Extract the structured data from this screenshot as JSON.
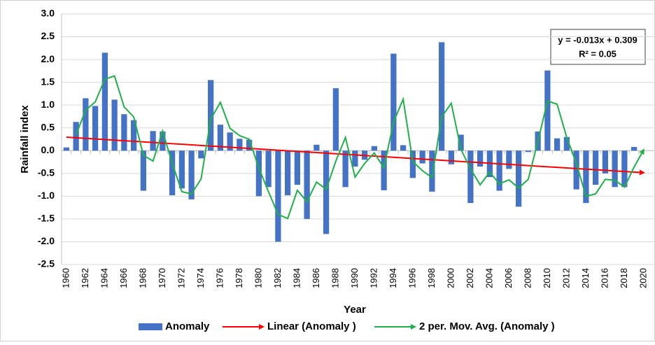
{
  "chart_data": {
    "type": "bar",
    "y_label": "Rainfall index",
    "x_label": "Year",
    "annotation": [
      "y = -0.013x + 0.309",
      "R² = 0.05"
    ],
    "categories": [
      1960,
      null,
      1962,
      null,
      1964,
      null,
      1966,
      null,
      1968,
      null,
      1970,
      null,
      1972,
      null,
      1974,
      null,
      1976,
      null,
      1978,
      null,
      1980,
      null,
      1982,
      null,
      1984,
      null,
      1986,
      null,
      1988,
      null,
      1990,
      null,
      1992,
      null,
      1994,
      null,
      1996,
      null,
      1998,
      null,
      2000,
      null,
      2002,
      null,
      2004,
      null,
      2006,
      null,
      2008,
      null,
      2010,
      null,
      2012,
      null,
      2014,
      null,
      2016,
      null,
      2018,
      null,
      2020
    ],
    "series": [
      {
        "name": "Anomaly",
        "type": "bar",
        "color": "#4472c4",
        "values": [
          0.07,
          0.63,
          1.15,
          0.98,
          2.15,
          1.12,
          0.8,
          0.67,
          -0.88,
          0.43,
          0.42,
          -0.98,
          -0.83,
          -1.07,
          -0.17,
          1.55,
          0.57,
          0.4,
          0.26,
          0.24,
          -1.0,
          -0.8,
          -2.0,
          -0.98,
          -0.75,
          -1.5,
          0.13,
          -1.83,
          1.37,
          -0.8,
          -0.35,
          -0.2,
          0.1,
          -0.87,
          2.13,
          0.12,
          -0.6,
          -0.28,
          -0.9,
          2.38,
          -0.3,
          0.35,
          -1.15,
          -0.35,
          -0.58,
          -0.88,
          -0.4,
          -1.23,
          -0.03,
          0.42,
          1.76,
          0.27,
          0.3,
          -0.85,
          -1.15,
          -0.75,
          -0.5,
          -0.8,
          -0.8,
          0.08,
          null
        ]
      },
      {
        "name": "Linear (Anomaly )",
        "type": "line",
        "color": "#ff0000",
        "values": [
          0.296,
          0.283,
          0.27,
          0.257,
          0.244,
          0.231,
          0.218,
          0.205,
          0.192,
          0.179,
          0.166,
          0.153,
          0.14,
          0.127,
          0.114,
          0.101,
          0.088,
          0.075,
          0.062,
          0.049,
          0.036,
          0.023,
          0.01,
          -0.003,
          -0.016,
          -0.029,
          -0.042,
          -0.055,
          -0.068,
          -0.081,
          -0.094,
          -0.107,
          -0.12,
          -0.133,
          -0.146,
          -0.159,
          -0.172,
          -0.185,
          -0.198,
          -0.211,
          -0.224,
          -0.237,
          -0.25,
          -0.263,
          -0.276,
          -0.289,
          -0.302,
          -0.315,
          -0.328,
          -0.341,
          -0.354,
          -0.367,
          -0.38,
          -0.393,
          -0.406,
          -0.419,
          -0.432,
          -0.445,
          -0.458,
          -0.471,
          -0.484
        ]
      },
      {
        "name": "2 per. Mov. Avg. (Anomaly )",
        "type": "line",
        "color": "#1fb04a",
        "values": [
          null,
          0.35,
          0.89,
          1.07,
          1.57,
          1.64,
          0.96,
          0.74,
          -0.1,
          -0.23,
          0.43,
          -0.28,
          -0.9,
          -0.95,
          -0.62,
          0.69,
          1.06,
          0.49,
          0.33,
          0.25,
          -0.38,
          -0.9,
          -1.4,
          -1.49,
          -0.87,
          -1.12,
          -0.69,
          -0.85,
          -0.23,
          0.29,
          -0.58,
          -0.28,
          -0.05,
          -0.38,
          0.63,
          1.13,
          -0.24,
          -0.44,
          -0.59,
          0.74,
          1.04,
          0.03,
          -0.4,
          -0.75,
          -0.47,
          -0.73,
          -0.64,
          -0.82,
          -0.63,
          0.2,
          1.09,
          1.02,
          0.29,
          -0.28,
          -1.0,
          -0.95,
          -0.63,
          -0.65,
          -0.8,
          -0.36,
          0.02
        ]
      }
    ],
    "ylim": [
      -2.5,
      3.0
    ],
    "yticks": [
      {
        "value": 3.0,
        "label": "3.0"
      },
      2.5,
      {
        "value": 2.0,
        "label": "2.0"
      },
      1.5,
      {
        "value": 1.0,
        "label": "1.0"
      },
      0.5,
      {
        "value": 0.0,
        "label": "0.0"
      },
      -0.5,
      {
        "value": -1.0,
        "label": "-1.0"
      },
      -1.5,
      {
        "value": -2.0,
        "label": "-2.0"
      },
      -2.5
    ],
    "grid": true,
    "legend": "bottom"
  }
}
